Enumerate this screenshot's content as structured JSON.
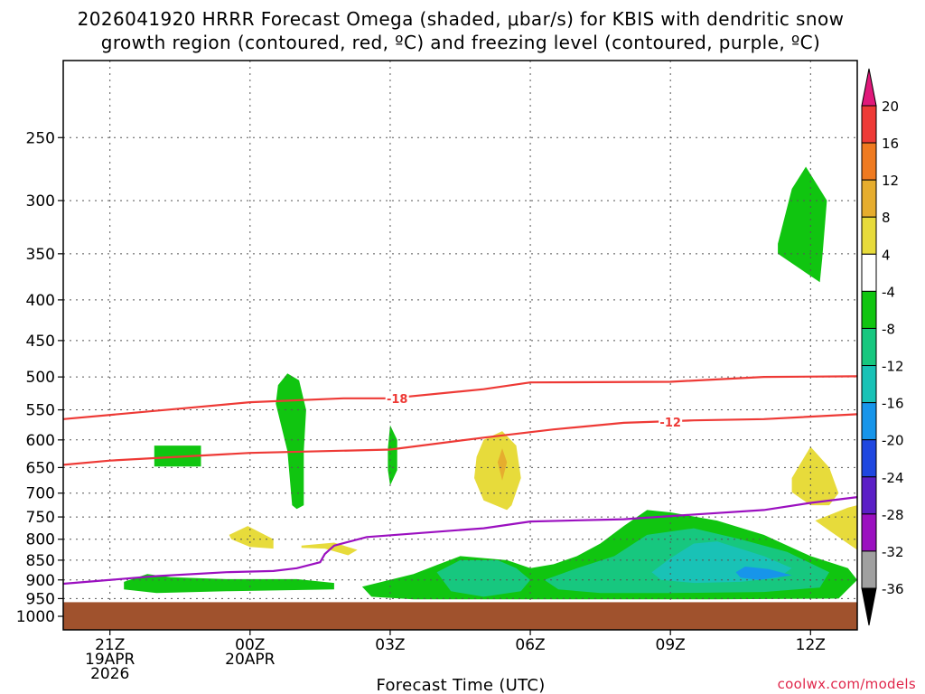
{
  "chart_data": {
    "type": "heatmap",
    "title_line1": "2026041920 HRRR Forecast Omega (shaded, μbar/s) for KBIS with dendritic snow",
    "title_line2": "growth region (contoured, red, ºC) and freezing level (contoured, purple, ºC)",
    "xlabel": "Forecast Time (UTC)",
    "ylabel": "",
    "credit": "coolwx.com/models",
    "x_range_hours_utc": [
      20,
      37
    ],
    "y_scale": "log-pressure",
    "y_range_mb": [
      200,
      1040
    ],
    "grid": true,
    "x_ticks": [
      {
        "hour": 21,
        "lines": [
          "21Z",
          "19APR",
          "2026"
        ]
      },
      {
        "hour": 24,
        "lines": [
          "00Z",
          "20APR"
        ]
      },
      {
        "hour": 27,
        "lines": [
          "03Z"
        ]
      },
      {
        "hour": 30,
        "lines": [
          "06Z"
        ]
      },
      {
        "hour": 33,
        "lines": [
          "09Z"
        ]
      },
      {
        "hour": 36,
        "lines": [
          "12Z"
        ]
      }
    ],
    "y_ticks": [
      "250",
      "300",
      "350",
      "400",
      "450",
      "500",
      "550",
      "600",
      "650",
      "700",
      "750",
      "800",
      "850",
      "900",
      "950",
      "1000"
    ],
    "colorbar": {
      "ticks": [
        "20",
        "16",
        "12",
        "8",
        "4",
        "-4",
        "-8",
        "-12",
        "-16",
        "-20",
        "-24",
        "-28",
        "-32",
        "-36"
      ],
      "colors": [
        "#e0187a",
        "#ee3a36",
        "#ef7a20",
        "#e6ad2e",
        "#e7db3b",
        "#ffffff",
        "#10c510",
        "#17c77f",
        "#19c2b6",
        "#1795ea",
        "#1f47e0",
        "#5b1fc6",
        "#9b10c0",
        "#a0a0a0",
        "#000000"
      ]
    },
    "terrain": {
      "color": "#a0522d",
      "surface_pressure_mb": 960
    },
    "contours": [
      {
        "name": "-18",
        "color": "#ee3a36",
        "points": [
          [
            20.0,
            565
          ],
          [
            22.5,
            548
          ],
          [
            24.0,
            538
          ],
          [
            26.0,
            532
          ],
          [
            27.0,
            532
          ],
          [
            29.0,
            518
          ],
          [
            30.0,
            508
          ],
          [
            33.0,
            507
          ],
          [
            35.0,
            500
          ],
          [
            37.0,
            499
          ]
        ]
      },
      {
        "name": "-12",
        "color": "#ee3a36",
        "points": [
          [
            20.0,
            645
          ],
          [
            21.0,
            637
          ],
          [
            24.0,
            623
          ],
          [
            27.0,
            617
          ],
          [
            29.0,
            596
          ],
          [
            30.5,
            582
          ],
          [
            32.0,
            571
          ],
          [
            33.5,
            567
          ],
          [
            35.0,
            565
          ],
          [
            37.0,
            557
          ]
        ]
      },
      {
        "name": "",
        "color": "#9b10c0",
        "points": [
          [
            20.0,
            910
          ],
          [
            22.0,
            890
          ],
          [
            23.5,
            880
          ],
          [
            24.5,
            877
          ],
          [
            25.0,
            870
          ],
          [
            25.5,
            855
          ],
          [
            25.6,
            835
          ],
          [
            25.8,
            815
          ],
          [
            26.5,
            795
          ],
          [
            29.0,
            775
          ],
          [
            30.0,
            760
          ],
          [
            32.0,
            755
          ],
          [
            33.0,
            748
          ],
          [
            35.0,
            735
          ],
          [
            36.0,
            720
          ],
          [
            37.0,
            708
          ]
        ]
      }
    ],
    "shaded_regions": [
      {
        "value": "-4 to -8",
        "color": "#10c510",
        "points": [
          [
            35.3,
            340
          ],
          [
            35.6,
            290
          ],
          [
            35.9,
            272
          ],
          [
            36.35,
            300
          ],
          [
            36.25,
            355
          ],
          [
            36.2,
            380
          ],
          [
            35.3,
            350
          ]
        ]
      },
      {
        "value": "-4 to -8",
        "color": "#10c510",
        "points": [
          [
            21.95,
            610
          ],
          [
            22.95,
            610
          ],
          [
            22.95,
            648
          ],
          [
            21.95,
            648
          ]
        ]
      },
      {
        "value": "-4 to -8",
        "color": "#10c510",
        "points": [
          [
            24.6,
            512
          ],
          [
            24.8,
            495
          ],
          [
            25.05,
            505
          ],
          [
            25.2,
            550
          ],
          [
            25.15,
            620
          ],
          [
            25.15,
            725
          ],
          [
            25.0,
            733
          ],
          [
            24.9,
            725
          ],
          [
            24.8,
            620
          ],
          [
            24.55,
            540
          ]
        ]
      },
      {
        "value": "-4 to -8",
        "color": "#10c510",
        "points": [
          [
            26.95,
            615
          ],
          [
            27.0,
            575
          ],
          [
            27.15,
            600
          ],
          [
            27.15,
            655
          ],
          [
            27.0,
            685
          ],
          [
            26.95,
            655
          ]
        ]
      },
      {
        "value": "-4 to -8",
        "color": "#10c510",
        "points": [
          [
            21.3,
            905
          ],
          [
            21.8,
            885
          ],
          [
            22.3,
            893
          ],
          [
            23.5,
            898
          ],
          [
            25.0,
            898
          ],
          [
            25.8,
            908
          ],
          [
            25.8,
            925
          ],
          [
            23.5,
            930
          ],
          [
            22.0,
            935
          ],
          [
            21.3,
            925
          ]
        ]
      },
      {
        "value": "-4 to -8",
        "color": "#10c510",
        "points": [
          [
            26.4,
            918
          ],
          [
            27.5,
            885
          ],
          [
            28.0,
            862
          ],
          [
            28.5,
            840
          ],
          [
            29.5,
            850
          ],
          [
            30.0,
            870
          ],
          [
            30.5,
            860
          ],
          [
            31.0,
            840
          ],
          [
            31.5,
            810
          ],
          [
            32.0,
            770
          ],
          [
            32.5,
            735
          ],
          [
            33.0,
            740
          ],
          [
            34.0,
            758
          ],
          [
            35.0,
            790
          ],
          [
            36.0,
            840
          ],
          [
            36.8,
            870
          ],
          [
            37.0,
            900
          ],
          [
            36.6,
            950
          ],
          [
            34.0,
            952
          ],
          [
            31.0,
            952
          ],
          [
            29.0,
            952
          ],
          [
            27.5,
            952
          ],
          [
            26.6,
            945
          ]
        ]
      },
      {
        "value": "-8 to -12",
        "color": "#17c77f",
        "points": [
          [
            28.0,
            880
          ],
          [
            28.5,
            850
          ],
          [
            29.3,
            850
          ],
          [
            29.7,
            870
          ],
          [
            30.0,
            900
          ],
          [
            29.8,
            930
          ],
          [
            29.0,
            945
          ],
          [
            28.3,
            930
          ]
        ]
      },
      {
        "value": "-8 to -12",
        "color": "#17c77f",
        "points": [
          [
            30.3,
            900
          ],
          [
            31.0,
            870
          ],
          [
            31.8,
            840
          ],
          [
            32.5,
            790
          ],
          [
            33.5,
            775
          ],
          [
            34.5,
            800
          ],
          [
            35.5,
            830
          ],
          [
            36.4,
            880
          ],
          [
            36.2,
            920
          ],
          [
            35.0,
            932
          ],
          [
            33.0,
            935
          ],
          [
            31.5,
            935
          ],
          [
            30.6,
            925
          ]
        ]
      },
      {
        "value": "-12 to -16",
        "color": "#19c2b6",
        "points": [
          [
            32.6,
            880
          ],
          [
            33.0,
            845
          ],
          [
            33.5,
            810
          ],
          [
            34.0,
            805
          ],
          [
            35.0,
            840
          ],
          [
            35.6,
            870
          ],
          [
            35.3,
            895
          ],
          [
            34.5,
            905
          ],
          [
            33.5,
            908
          ],
          [
            32.8,
            900
          ]
        ]
      },
      {
        "value": "-16 to -20",
        "color": "#1795ea",
        "points": [
          [
            34.4,
            880
          ],
          [
            34.6,
            866
          ],
          [
            35.1,
            872
          ],
          [
            35.6,
            888
          ],
          [
            34.9,
            900
          ],
          [
            34.5,
            894
          ]
        ]
      },
      {
        "value": "4 to 8",
        "color": "#e7db3b",
        "points": [
          [
            28.85,
            630
          ],
          [
            29.0,
            600
          ],
          [
            29.4,
            585
          ],
          [
            29.7,
            610
          ],
          [
            29.8,
            670
          ],
          [
            29.6,
            725
          ],
          [
            29.5,
            735
          ],
          [
            29.0,
            715
          ],
          [
            28.8,
            670
          ]
        ]
      },
      {
        "value": "8 to 12",
        "color": "#e6ad2e",
        "points": [
          [
            29.3,
            640
          ],
          [
            29.4,
            615
          ],
          [
            29.5,
            640
          ],
          [
            29.4,
            675
          ]
        ]
      },
      {
        "value": "4 to 8",
        "color": "#e7db3b",
        "points": [
          [
            35.6,
            670
          ],
          [
            35.8,
            640
          ],
          [
            36.0,
            612
          ],
          [
            36.4,
            650
          ],
          [
            36.6,
            700
          ],
          [
            36.4,
            725
          ],
          [
            36.0,
            725
          ],
          [
            35.6,
            698
          ]
        ]
      },
      {
        "value": "4 to 8",
        "color": "#e7db3b",
        "points": [
          [
            36.1,
            758
          ],
          [
            36.8,
            730
          ],
          [
            37.0,
            725
          ],
          [
            37.0,
            825
          ],
          [
            36.8,
            810
          ],
          [
            36.4,
            780
          ]
        ]
      },
      {
        "value": "4 to 8",
        "color": "#e7db3b",
        "points": [
          [
            23.55,
            790
          ],
          [
            23.95,
            770
          ],
          [
            24.5,
            800
          ],
          [
            24.5,
            822
          ],
          [
            24.0,
            818
          ],
          [
            23.6,
            800
          ]
        ]
      },
      {
        "value": "4 to 8",
        "color": "#e7db3b",
        "points": [
          [
            25.1,
            815
          ],
          [
            25.8,
            808
          ],
          [
            26.3,
            825
          ],
          [
            26.1,
            838
          ],
          [
            25.6,
            822
          ],
          [
            25.1,
            820
          ]
        ]
      }
    ]
  }
}
